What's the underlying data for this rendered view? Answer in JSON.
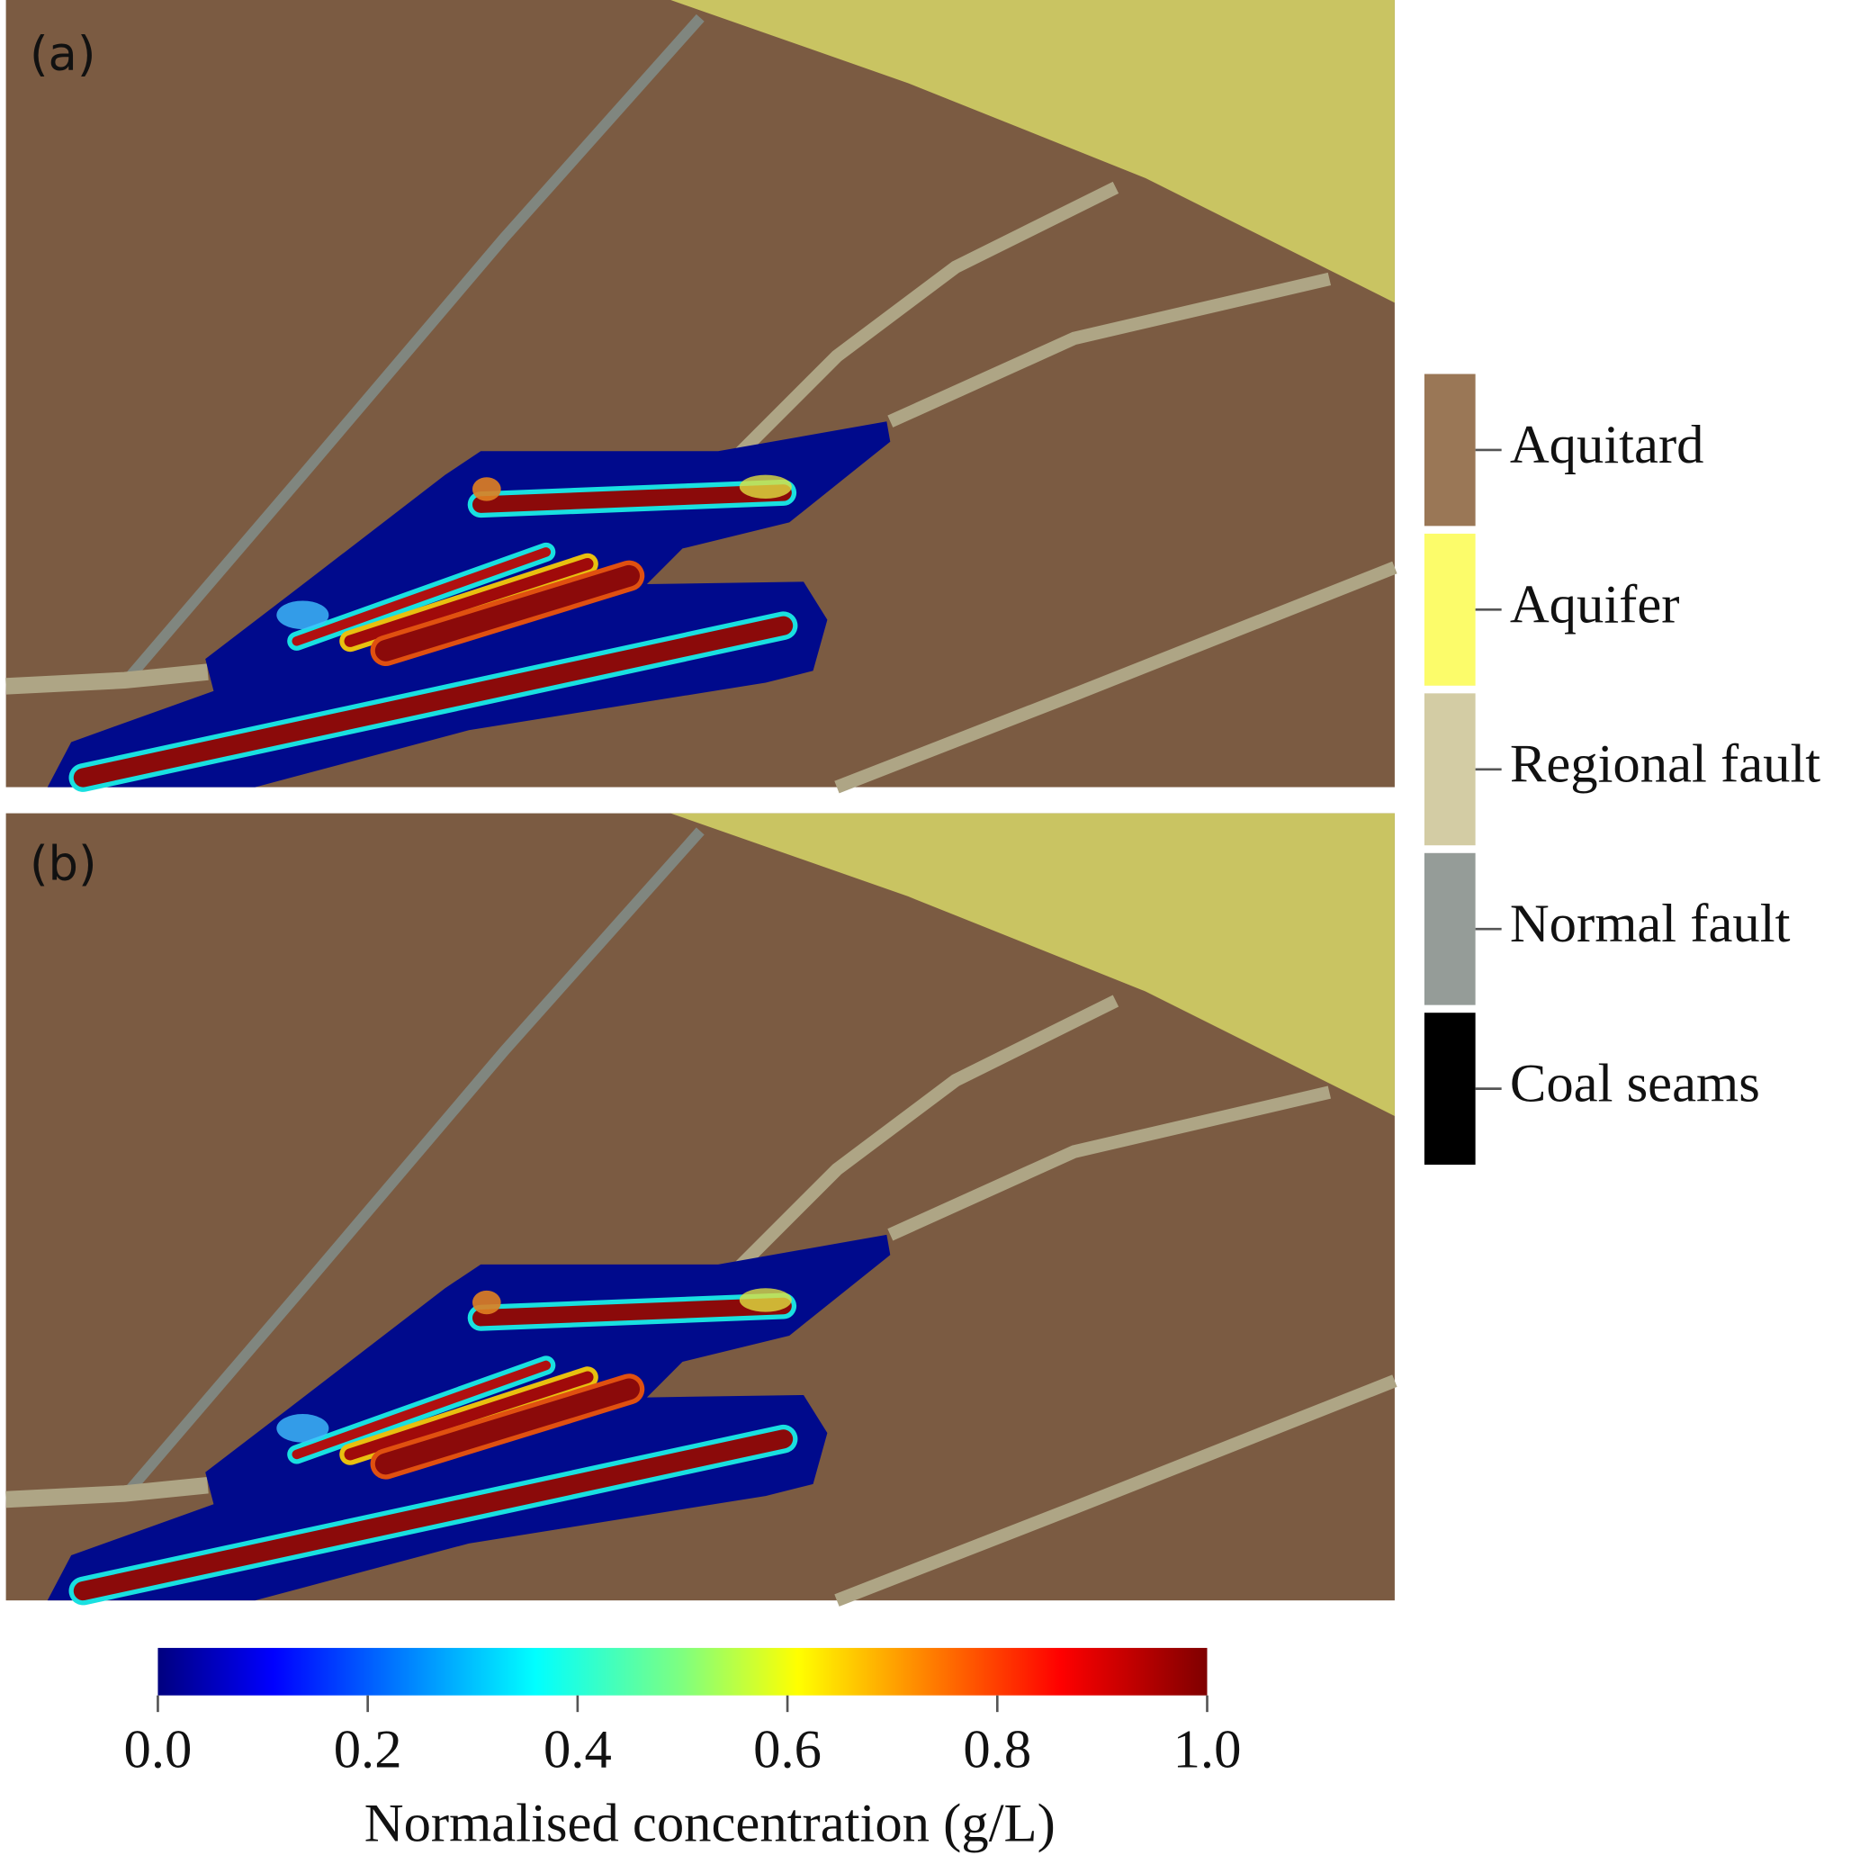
{
  "panels": [
    {
      "label": "(a)"
    },
    {
      "label": "(b)"
    }
  ],
  "legend": [
    {
      "name": "Aquitard",
      "color": "#9a7756"
    },
    {
      "name": "Aquifer",
      "color": "#fcfc6a"
    },
    {
      "name": "Regional fault",
      "color": "#d3cca4"
    },
    {
      "name": "Normal fault",
      "color": "#959c98"
    },
    {
      "name": "Coal seams",
      "color": "#000000"
    }
  ],
  "colorbar": {
    "range": [
      0,
      1
    ],
    "ticks": [
      {
        "value": 0,
        "label": "0.0"
      },
      {
        "value": 0.2,
        "label": "0.2"
      },
      {
        "value": 0.4,
        "label": "0.4"
      },
      {
        "value": 0.6,
        "label": "0.6"
      },
      {
        "value": 0.8,
        "label": "0.8"
      },
      {
        "value": 1,
        "label": "1.0"
      }
    ],
    "label": "Normalised concentration (g/L)"
  }
}
